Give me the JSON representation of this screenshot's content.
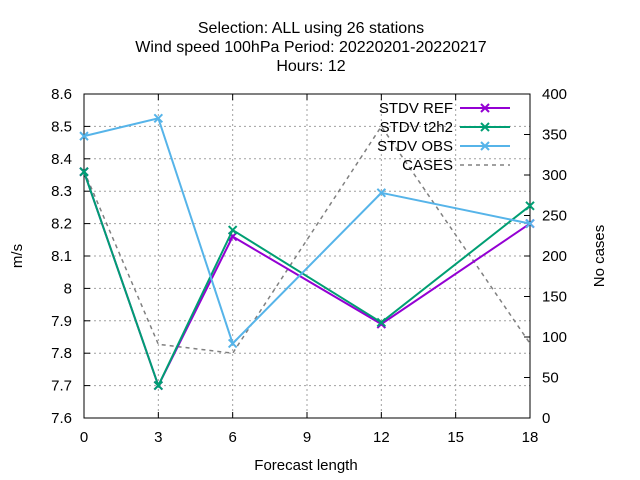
{
  "chart_data": {
    "type": "line",
    "title_lines": [
      "Selection: ALL using     26 stations",
      "Wind speed 100hPa   Period: 20220201-20220217",
      "Hours:  12"
    ],
    "xlabel": "Forecast length",
    "ylabel": "m/s",
    "y2label": "No cases",
    "x": [
      0,
      3,
      6,
      12,
      18
    ],
    "xlim": [
      0,
      18
    ],
    "xticks": [
      "0",
      "3",
      "6",
      "9",
      "12",
      "15",
      "18"
    ],
    "ylim": [
      7.6,
      8.6
    ],
    "yticks": [
      "7.6",
      "7.7",
      "7.8",
      "7.9",
      "8",
      "8.1",
      "8.2",
      "8.3",
      "8.4",
      "8.5",
      "8.6"
    ],
    "y2lim": [
      0,
      400
    ],
    "y2ticks": [
      "0",
      "50",
      "100",
      "150",
      "200",
      "250",
      "300",
      "350",
      "400"
    ],
    "grid": true,
    "legend_position": "top-right",
    "series": [
      {
        "name": "STDV REF",
        "axis": "left",
        "color": "#9400d3",
        "marker": "x",
        "style": "solid",
        "values": [
          8.36,
          7.7,
          8.16,
          7.89,
          8.2
        ]
      },
      {
        "name": "STDV t2h2",
        "axis": "left",
        "color": "#009e73",
        "marker": "x",
        "style": "solid",
        "values": [
          8.36,
          7.7,
          8.18,
          7.895,
          8.255
        ]
      },
      {
        "name": "STDV OBS",
        "axis": "left",
        "color": "#56b4e9",
        "marker": "x",
        "style": "solid",
        "values": [
          8.47,
          8.525,
          7.83,
          8.295,
          8.2
        ]
      },
      {
        "name": "CASES",
        "axis": "right",
        "color": "#808080",
        "marker": "",
        "style": "dashed",
        "values": [
          305,
          91,
          80,
          360,
          92
        ]
      }
    ]
  }
}
